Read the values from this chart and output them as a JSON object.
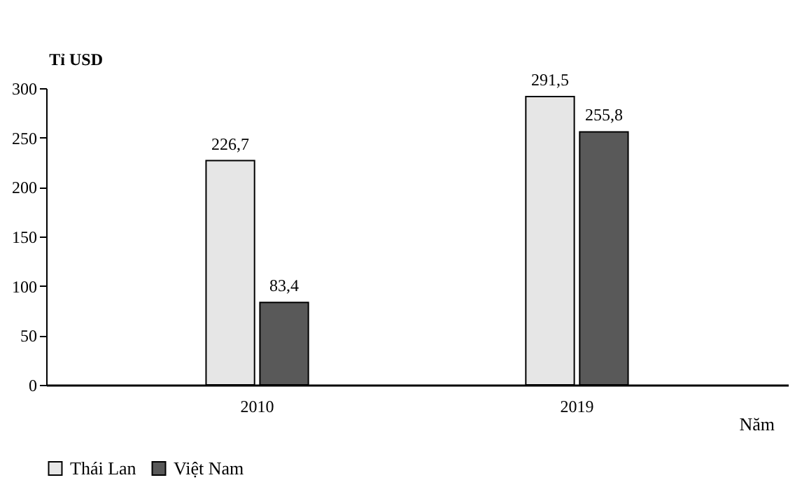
{
  "chart_data": {
    "type": "bar",
    "ylabel": "Tỉ USD",
    "xlabel": "Năm",
    "categories": [
      "2010",
      "2019"
    ],
    "series": [
      {
        "name": "Thái Lan",
        "color": "#e6e6e6",
        "values": [
          226.7,
          291.5
        ],
        "value_labels": [
          "226,7",
          "291,5"
        ]
      },
      {
        "name": "Việt Nam",
        "color": "#595959",
        "values": [
          83.4,
          255.8
        ],
        "value_labels": [
          "83,4",
          "255,8"
        ]
      }
    ],
    "ylim": [
      0,
      300
    ],
    "yticks": [
      0,
      50,
      100,
      150,
      200,
      250,
      300
    ],
    "grid": false,
    "legend": "bottom"
  }
}
